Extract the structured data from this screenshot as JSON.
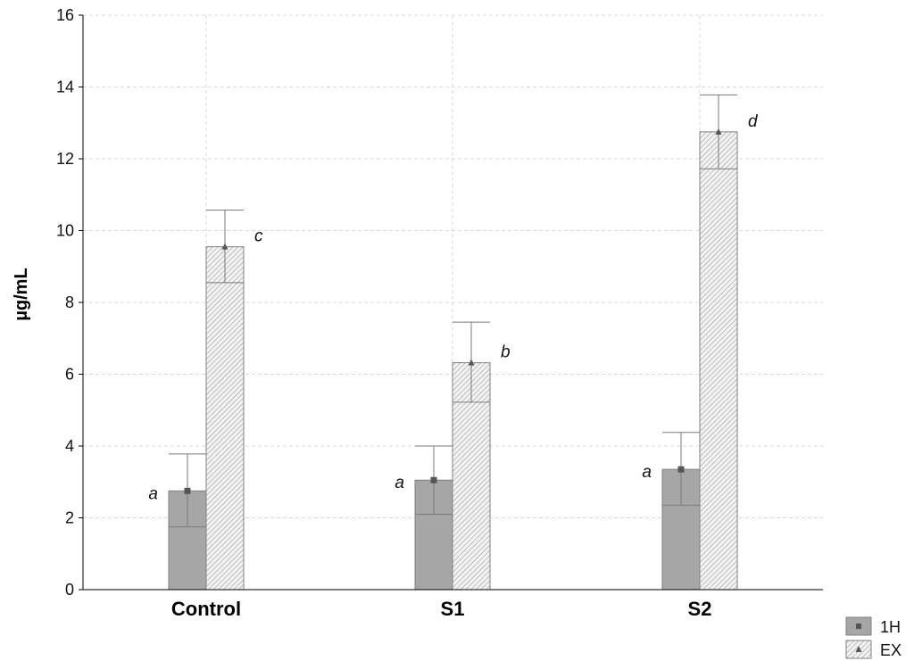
{
  "chart_data": {
    "type": "bar",
    "title": "",
    "xlabel": "",
    "ylabel": "µg/mL",
    "ylim": [
      0,
      16
    ],
    "yticks": [
      0,
      2,
      4,
      6,
      8,
      10,
      12,
      14,
      16
    ],
    "categories": [
      "Control",
      "S1",
      "S2"
    ],
    "grid": true,
    "legend_position": "bottom-right",
    "series": [
      {
        "name": "1H",
        "values": [
          2.75,
          3.05,
          3.35
        ],
        "error_low": [
          1.75,
          2.1,
          2.35
        ],
        "error_high": [
          3.78,
          4.0,
          4.38
        ],
        "letters": [
          "a",
          "a",
          "a"
        ],
        "color": "#a6a6a6",
        "marker": "square"
      },
      {
        "name": "EX",
        "values": [
          9.55,
          6.32,
          12.75
        ],
        "error_low": [
          8.55,
          5.22,
          11.72
        ],
        "error_high": [
          10.57,
          7.45,
          13.78
        ],
        "letters": [
          "c",
          "b",
          "d"
        ],
        "color": "#bfbfbf",
        "marker": "triangle",
        "pattern": "diagonal-hatch"
      }
    ]
  }
}
